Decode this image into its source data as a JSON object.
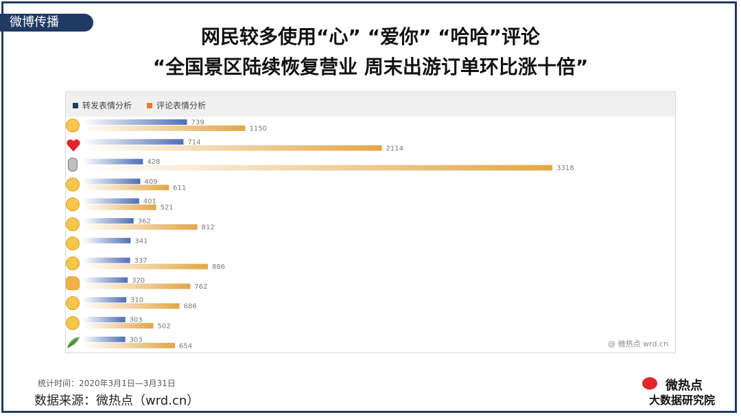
{
  "section_tag": "微博传播",
  "title_line1": "网民较多使用“心”  “爱你”  “哈哈”评论",
  "title_line2": "“全国景区陆续恢复营业 周末出游订单环比涨十倍”",
  "footer": {
    "date_range": "统计时间：2020年3月1日—3月31日",
    "source": "数据来源：微热点（wrd.cn）"
  },
  "logo": {
    "top": "微热点",
    "bottom": "大数据研究院"
  },
  "colors": {
    "frame": "#1f3a63",
    "forward": "#4f6fb5",
    "comment": "#e3a646"
  },
  "chart_data": {
    "type": "bar",
    "orientation": "horizontal",
    "watermark": "@ 微热点  wrd.cn",
    "legend_position": "top-left",
    "categories": [
      "laugh-tears-emoji",
      "heart-emoji",
      "microphone-emoji",
      "kiss-emoji",
      "haha-emoji",
      "doge-emoji",
      "pleading-emoji",
      "smile-emoji",
      "thumbs-up-emoji",
      "surprised-emoji",
      "grin-emoji",
      "leaf-emoji"
    ],
    "xlim": [
      0,
      3500
    ],
    "series": [
      {
        "name": "转发表情分析",
        "color": "#4f6fb5",
        "values": [
          739,
          714,
          428,
          409,
          401,
          362,
          341,
          337,
          320,
          310,
          303,
          303
        ]
      },
      {
        "name": "评论表情分析",
        "color": "#e3a646",
        "values": [
          1150,
          2114,
          3318,
          611,
          521,
          812,
          null,
          886,
          762,
          686,
          502,
          654
        ]
      }
    ]
  }
}
